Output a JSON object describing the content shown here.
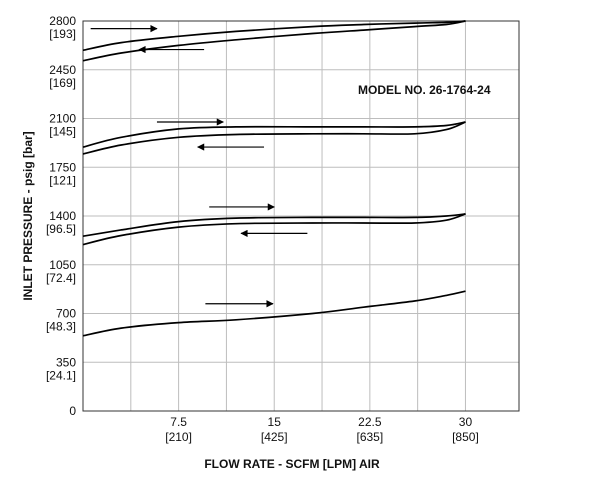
{
  "chart_data": {
    "type": "line",
    "title": "",
    "annotation": "MODEL NO. 26-1764-24",
    "xlabel": "FLOW RATE - SCFM [LPM] AIR",
    "ylabel": "INLET PRESSURE - psig [bar]",
    "xlim": [
      0,
      34.2
    ],
    "ylim": [
      0,
      2800
    ],
    "grid": true,
    "x_gridlines": [
      3.75,
      7.5,
      11.25,
      15,
      18.75,
      22.5,
      26.25,
      30
    ],
    "y_gridlines": [
      350,
      700,
      1050,
      1400,
      1750,
      2100,
      2450
    ],
    "x_ticks": [
      {
        "value": 7.5,
        "label": "7.5",
        "sublabel": "[210]"
      },
      {
        "value": 15,
        "label": "15",
        "sublabel": "[425]"
      },
      {
        "value": 22.5,
        "label": "22.5",
        "sublabel": "[635]"
      },
      {
        "value": 30,
        "label": "30",
        "sublabel": "[850]"
      }
    ],
    "y_ticks": [
      {
        "value": 2800,
        "label": "2800",
        "sublabel": "[193]"
      },
      {
        "value": 2450,
        "label": "2450",
        "sublabel": "[169]"
      },
      {
        "value": 2100,
        "label": "2100",
        "sublabel": "[145]"
      },
      {
        "value": 1750,
        "label": "1750",
        "sublabel": "[121]"
      },
      {
        "value": 1400,
        "label": "1400",
        "sublabel": "[96.5]"
      },
      {
        "value": 1050,
        "label": "1050",
        "sublabel": "[72.4]"
      },
      {
        "value": 700,
        "label": "700",
        "sublabel": "[48.3]"
      },
      {
        "value": 350,
        "label": "350",
        "sublabel": "[24.1]"
      },
      {
        "value": 0,
        "label": "0",
        "sublabel": ""
      }
    ],
    "series": [
      {
        "name": "2800 psig - increasing flow",
        "x": [
          0,
          3,
          7.5,
          12,
          18,
          22,
          26,
          28.5,
          30
        ],
        "y": [
          2590,
          2645,
          2690,
          2725,
          2760,
          2775,
          2785,
          2790,
          2800
        ]
      },
      {
        "name": "2800 psig - decreasing flow",
        "x": [
          0,
          3,
          7.5,
          12,
          18,
          22,
          26,
          28.5,
          30
        ],
        "y": [
          2515,
          2570,
          2625,
          2665,
          2710,
          2735,
          2760,
          2775,
          2800
        ]
      },
      {
        "name": "2100 psig - increasing flow",
        "x": [
          0,
          3,
          7.5,
          12,
          18,
          22,
          26,
          28.5,
          30
        ],
        "y": [
          1895,
          1965,
          2025,
          2040,
          2040,
          2040,
          2040,
          2050,
          2075
        ]
      },
      {
        "name": "2100 psig - decreasing flow",
        "x": [
          0,
          3,
          7.5,
          12,
          18,
          22,
          26,
          28.5,
          30
        ],
        "y": [
          1845,
          1910,
          1965,
          1985,
          1990,
          1990,
          1990,
          2020,
          2075
        ]
      },
      {
        "name": "1400 psig - increasing flow",
        "x": [
          0,
          3,
          7.5,
          12,
          18,
          22,
          26,
          28.5,
          30
        ],
        "y": [
          1255,
          1300,
          1360,
          1385,
          1390,
          1390,
          1390,
          1400,
          1415
        ]
      },
      {
        "name": "1400 psig - decreasing flow",
        "x": [
          0,
          3,
          7.5,
          12,
          18,
          22,
          26,
          28.5,
          30
        ],
        "y": [
          1195,
          1260,
          1320,
          1345,
          1350,
          1350,
          1350,
          1370,
          1415
        ]
      },
      {
        "name": "700 psig",
        "x": [
          0,
          3,
          7.5,
          12,
          18,
          22,
          26,
          28.5,
          30
        ],
        "y": [
          540,
          595,
          635,
          655,
          700,
          745,
          790,
          830,
          860
        ]
      }
    ],
    "arrows": [
      {
        "direction": "right",
        "x_from": 0.6,
        "x_to": 5.8,
        "y": 2745
      },
      {
        "direction": "left",
        "x_from": 9.5,
        "x_to": 4.4,
        "y": 2595
      },
      {
        "direction": "right",
        "x_from": 5.8,
        "x_to": 11.0,
        "y": 2075
      },
      {
        "direction": "left",
        "x_from": 14.2,
        "x_to": 9.0,
        "y": 1895
      },
      {
        "direction": "right",
        "x_from": 9.9,
        "x_to": 15.0,
        "y": 1465
      },
      {
        "direction": "left",
        "x_from": 17.6,
        "x_to": 12.4,
        "y": 1275
      },
      {
        "direction": "right",
        "x_from": 9.6,
        "x_to": 14.9,
        "y": 770
      }
    ]
  }
}
